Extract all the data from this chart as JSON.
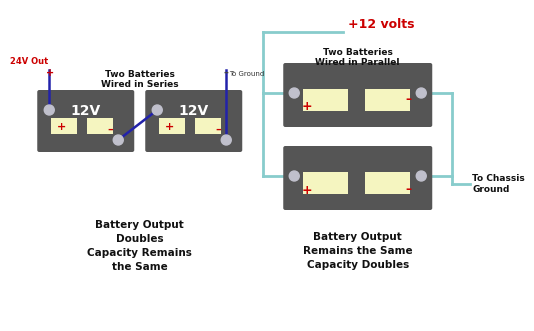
{
  "bg_color": "#ffffff",
  "battery_color": "#555555",
  "terminal_color": "#c0c0cc",
  "cell_color": "#f5f5c0",
  "wire_series_color": "#2222aa",
  "wire_parallel_color": "#88cccc",
  "plus_color": "#cc0000",
  "minus_color": "#cc0000",
  "text_color": "#111111",
  "red_label_color": "#cc0000",
  "series_label": "Two Batteries\nWired in Series",
  "parallel_label": "Two Batteries\nWired in Parallel",
  "v24_label": "24V Out",
  "v12_label": "+12 volts",
  "to_ground_label": "To Ground",
  "chassis_ground_label": "To Chassis\nGround",
  "batt_label": "12V",
  "caption_left": "Battery Output\nDoubles\nCapacity Remains\nthe Same",
  "caption_right": "Battery Output\nRemains the Same\nCapacity Doubles"
}
